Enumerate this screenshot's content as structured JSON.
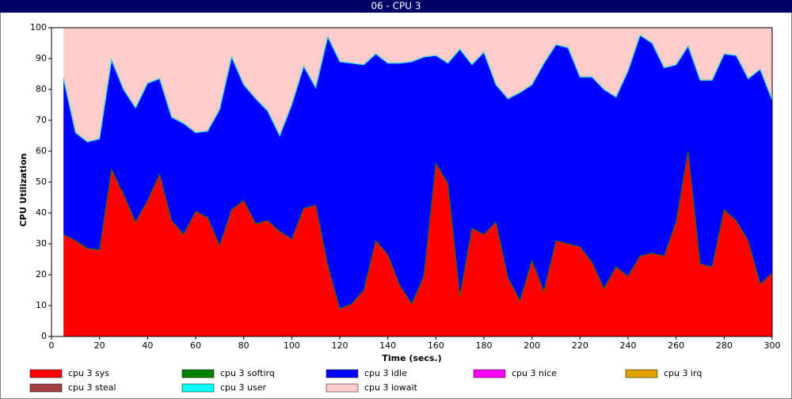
{
  "chart_data": {
    "type": "stacked-area",
    "title": "06 - CPU 3",
    "x_label": "Time (secs.)",
    "y_label": "CPU Utilization",
    "xlim": [
      0,
      300
    ],
    "ylim": [
      0,
      100
    ],
    "xticks": [
      0,
      20,
      40,
      60,
      80,
      100,
      120,
      140,
      160,
      180,
      200,
      220,
      240,
      260,
      280,
      300
    ],
    "yticks": [
      0,
      10,
      20,
      30,
      40,
      50,
      60,
      70,
      80,
      90,
      100
    ],
    "legend": "bottom",
    "x": [
      5,
      10,
      15,
      20,
      25,
      30,
      35,
      40,
      45,
      50,
      55,
      60,
      65,
      70,
      75,
      80,
      85,
      90,
      95,
      100,
      105,
      110,
      115,
      120,
      125,
      130,
      135,
      140,
      145,
      150,
      155,
      160,
      165,
      170,
      175,
      180,
      185,
      190,
      195,
      200,
      205,
      210,
      215,
      220,
      225,
      230,
      235,
      240,
      245,
      250,
      255,
      260,
      265,
      270,
      275,
      280,
      285,
      290,
      295,
      300
    ],
    "series": [
      {
        "name": "cpu 3 sys",
        "color": "#ff0000",
        "values": [
          33,
          31,
          28.5,
          28,
          54,
          46,
          37,
          44,
          52.5,
          37.5,
          33,
          40.5,
          38.5,
          29.5,
          41,
          44,
          36.5,
          37.5,
          34,
          31.5,
          41.5,
          42.5,
          23,
          9,
          10.5,
          15,
          31,
          26.5,
          16.5,
          10.5,
          19.5,
          56,
          49.5,
          13,
          35,
          33,
          37,
          19,
          11.5,
          24.5,
          14.5,
          31,
          30,
          29,
          24,
          15.5,
          22.5,
          19.5,
          26,
          27,
          26,
          37,
          60,
          23.5,
          22.5,
          41,
          37.5,
          31,
          17,
          20.5
        ]
      },
      {
        "name": "cpu 3 softirq",
        "color": "#008000",
        "values": [
          0,
          0,
          0,
          0,
          0,
          0,
          0,
          0,
          0,
          0,
          0,
          0,
          0,
          0,
          0,
          0,
          0,
          0,
          0,
          0,
          0,
          0,
          0,
          0,
          0,
          0,
          0,
          0,
          0,
          0,
          0,
          0,
          0,
          0,
          0,
          0,
          0,
          0,
          0,
          0,
          0,
          0,
          0,
          0,
          0,
          0,
          0,
          0,
          0,
          0,
          0,
          0,
          0,
          0,
          0,
          0,
          0,
          0,
          0,
          0
        ]
      },
      {
        "name": "cpu 3 idle",
        "color": "#0000ff",
        "values": [
          50.5,
          35,
          34.5,
          36,
          35.5,
          34,
          37,
          38,
          31,
          33.5,
          36,
          25.5,
          28,
          44,
          49.5,
          37.5,
          40.5,
          35.5,
          31,
          43.5,
          46,
          38,
          74,
          80,
          78,
          73,
          60.5,
          62,
          72,
          78.5,
          71,
          35,
          39,
          80,
          53,
          59,
          44.5,
          58,
          67.5,
          57,
          74,
          63.5,
          63.5,
          55,
          60,
          64.5,
          55,
          66.5,
          71.5,
          68,
          61,
          51,
          34,
          59.5,
          60.5,
          50.5,
          53.5,
          52.5,
          69.5,
          56
        ]
      },
      {
        "name": "cpu 3 nice",
        "color": "#ff00ff",
        "values": [
          0,
          0,
          0,
          0,
          0,
          0,
          0,
          0,
          0,
          0,
          0,
          0,
          0,
          0,
          0,
          0,
          0,
          0,
          0,
          0,
          0,
          0,
          0,
          0,
          0,
          0,
          0,
          0,
          0,
          0,
          0,
          0,
          0,
          0,
          0,
          0,
          0,
          0,
          0,
          0,
          0,
          0,
          0,
          0,
          0,
          0,
          0,
          0,
          0,
          0,
          0,
          0,
          0,
          0,
          0,
          0,
          0,
          0,
          0,
          0
        ]
      },
      {
        "name": "cpu 3 irq",
        "color": "#e0a000",
        "values": [
          0,
          0,
          0,
          0,
          0,
          0,
          0,
          0,
          0,
          0,
          0,
          0,
          0,
          0,
          0,
          0,
          0,
          0,
          0,
          0,
          0,
          0,
          0,
          0,
          0,
          0,
          0,
          0,
          0,
          0,
          0,
          0,
          0,
          0,
          0,
          0,
          0,
          0,
          0,
          0,
          0,
          0,
          0,
          0,
          0,
          0,
          0,
          0,
          0,
          0,
          0,
          0,
          0,
          0,
          0,
          0,
          0,
          0,
          0,
          0
        ]
      },
      {
        "name": "cpu 3 steal",
        "color": "#a04040",
        "values": [
          0,
          0,
          0,
          0,
          0,
          0,
          0,
          0,
          0,
          0,
          0,
          0,
          0,
          0,
          0,
          0,
          0,
          0,
          0,
          0,
          0,
          0,
          0,
          0,
          0,
          0,
          0,
          0,
          0,
          0,
          0,
          0,
          0,
          0,
          0,
          0,
          0,
          0,
          0,
          0,
          0,
          0,
          0,
          0,
          0,
          0,
          0,
          0,
          0,
          0,
          0,
          0,
          0,
          0,
          0,
          0,
          0,
          0,
          0,
          0
        ]
      },
      {
        "name": "cpu 3 user",
        "color": "#00ffff",
        "values": [
          0,
          0,
          0,
          0,
          0,
          0,
          0,
          0,
          0,
          0,
          0,
          0,
          0,
          0,
          0,
          0,
          0,
          0,
          0,
          0,
          0,
          0,
          0,
          0,
          0,
          0,
          0,
          0,
          0,
          0,
          0,
          0,
          0,
          0,
          0,
          0,
          0,
          0,
          0,
          0,
          0,
          0,
          0,
          0,
          0,
          0,
          0,
          0,
          0,
          0,
          0,
          0,
          0,
          0,
          0,
          0,
          0,
          0,
          0,
          0
        ]
      },
      {
        "name": "cpu 3 iowait",
        "color": "#ffcccc",
        "values": [
          16.5,
          34,
          37,
          36,
          10.5,
          20,
          26,
          18,
          16.5,
          29,
          31,
          34,
          33.5,
          26.5,
          9.5,
          18.5,
          23,
          27,
          35,
          25,
          12.5,
          19.5,
          3,
          11,
          11.5,
          12,
          8.5,
          11.5,
          11.5,
          11,
          9.5,
          9,
          11.5,
          7,
          12,
          8,
          18.5,
          23,
          21,
          18.5,
          11.5,
          5.5,
          6.5,
          16,
          16,
          20,
          22.5,
          14,
          2.5,
          5,
          13,
          12,
          6,
          17,
          17,
          8.5,
          9,
          16.5,
          13.5,
          23.5
        ]
      }
    ]
  }
}
